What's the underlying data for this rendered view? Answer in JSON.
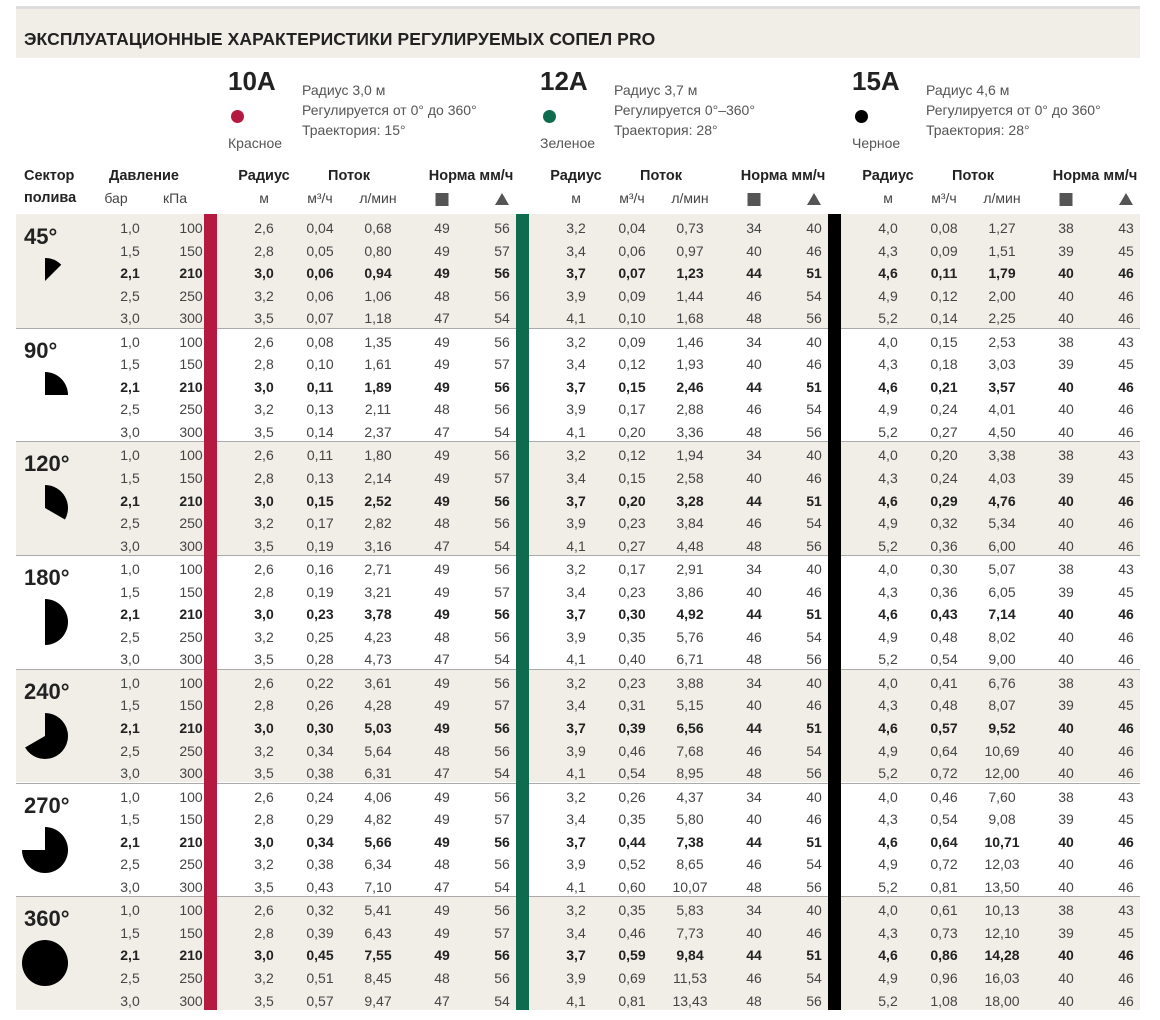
{
  "title": "ЭКСПЛУАТАЦИОННЫЕ ХАРАКТЕРИСТИКИ РЕГУЛИРУЕМЫХ СОПЕЛ PRO",
  "nozzles": [
    {
      "model": "10A",
      "color_name": "Красное",
      "color": "#b5193f",
      "specs": [
        "Радиус 3,0 м",
        "Регулируется от 0° до 360°",
        "Траектория: 15°"
      ]
    },
    {
      "model": "12A",
      "color_name": "Зеленое",
      "color": "#0f6b4e",
      "specs": [
        "Радиус 3,7 м",
        "Регулируется 0°–360°",
        "Траектория: 28°"
      ]
    },
    {
      "model": "15A",
      "color_name": "Черное",
      "color": "#000000",
      "specs": [
        "Радиус 4,6 м",
        "Регулируется от 0° до 360°",
        "Траектория: 28°"
      ]
    }
  ],
  "headers": {
    "sector": "Сектор",
    "sector2": "полива",
    "pressure": "Давление",
    "bar": "бар",
    "kpa": "кПа",
    "radius": "Радиус",
    "radius_unit": "м",
    "flow": "Поток",
    "flow_m3": "м³/ч",
    "flow_lmin": "л/мин",
    "rate": "Норма мм/ч"
  },
  "pressures": [
    [
      "1,0",
      "100"
    ],
    [
      "1,5",
      "150"
    ],
    [
      "2,1",
      "210"
    ],
    [
      "2,5",
      "250"
    ],
    [
      "3,0",
      "300"
    ]
  ],
  "rate_values": [
    [
      "49",
      "56"
    ],
    [
      "49",
      "57"
    ],
    [
      "49",
      "56"
    ],
    [
      "48",
      "56"
    ],
    [
      "47",
      "54"
    ]
  ],
  "rate_values_12": [
    [
      "34",
      "40"
    ],
    [
      "40",
      "46"
    ],
    [
      "44",
      "51"
    ],
    [
      "46",
      "54"
    ],
    [
      "48",
      "56"
    ]
  ],
  "rate_values_15": [
    [
      "38",
      "43"
    ],
    [
      "39",
      "45"
    ],
    [
      "40",
      "46"
    ],
    [
      "40",
      "46"
    ],
    [
      "40",
      "46"
    ]
  ],
  "radii": {
    "n10": [
      "2,6",
      "2,8",
      "3,0",
      "3,2",
      "3,5"
    ],
    "n12": [
      "3,2",
      "3,4",
      "3,7",
      "3,9",
      "4,1"
    ],
    "n15": [
      "4,0",
      "4,3",
      "4,6",
      "4,9",
      "5,2"
    ]
  },
  "sections": [
    {
      "label": "45°",
      "fraction": 0.125,
      "n10": [
        [
          "0,04",
          "0,68"
        ],
        [
          "0,05",
          "0,80"
        ],
        [
          "0,06",
          "0,94"
        ],
        [
          "0,06",
          "1,06"
        ],
        [
          "0,07",
          "1,18"
        ]
      ],
      "n12": [
        [
          "0,04",
          "0,73"
        ],
        [
          "0,06",
          "0,97"
        ],
        [
          "0,07",
          "1,23"
        ],
        [
          "0,09",
          "1,44"
        ],
        [
          "0,10",
          "1,68"
        ]
      ],
      "n15": [
        [
          "0,08",
          "1,27"
        ],
        [
          "0,09",
          "1,51"
        ],
        [
          "0,11",
          "1,79"
        ],
        [
          "0,12",
          "2,00"
        ],
        [
          "0,14",
          "2,25"
        ]
      ]
    },
    {
      "label": "90°",
      "fraction": 0.25,
      "n10": [
        [
          "0,08",
          "1,35"
        ],
        [
          "0,10",
          "1,61"
        ],
        [
          "0,11",
          "1,89"
        ],
        [
          "0,13",
          "2,11"
        ],
        [
          "0,14",
          "2,37"
        ]
      ],
      "n12": [
        [
          "0,09",
          "1,46"
        ],
        [
          "0,12",
          "1,93"
        ],
        [
          "0,15",
          "2,46"
        ],
        [
          "0,17",
          "2,88"
        ],
        [
          "0,20",
          "3,36"
        ]
      ],
      "n15": [
        [
          "0,15",
          "2,53"
        ],
        [
          "0,18",
          "3,03"
        ],
        [
          "0,21",
          "3,57"
        ],
        [
          "0,24",
          "4,01"
        ],
        [
          "0,27",
          "4,50"
        ]
      ]
    },
    {
      "label": "120°",
      "fraction": 0.3333,
      "n10": [
        [
          "0,11",
          "1,80"
        ],
        [
          "0,13",
          "2,14"
        ],
        [
          "0,15",
          "2,52"
        ],
        [
          "0,17",
          "2,82"
        ],
        [
          "0,19",
          "3,16"
        ]
      ],
      "n12": [
        [
          "0,12",
          "1,94"
        ],
        [
          "0,15",
          "2,58"
        ],
        [
          "0,20",
          "3,28"
        ],
        [
          "0,23",
          "3,84"
        ],
        [
          "0,27",
          "4,48"
        ]
      ],
      "n15": [
        [
          "0,20",
          "3,38"
        ],
        [
          "0,24",
          "4,03"
        ],
        [
          "0,29",
          "4,76"
        ],
        [
          "0,32",
          "5,34"
        ],
        [
          "0,36",
          "6,00"
        ]
      ]
    },
    {
      "label": "180°",
      "fraction": 0.5,
      "n10": [
        [
          "0,16",
          "2,71"
        ],
        [
          "0,19",
          "3,21"
        ],
        [
          "0,23",
          "3,78"
        ],
        [
          "0,25",
          "4,23"
        ],
        [
          "0,28",
          "4,73"
        ]
      ],
      "n12": [
        [
          "0,17",
          "2,91"
        ],
        [
          "0,23",
          "3,86"
        ],
        [
          "0,30",
          "4,92"
        ],
        [
          "0,35",
          "5,76"
        ],
        [
          "0,40",
          "6,71"
        ]
      ],
      "n15": [
        [
          "0,30",
          "5,07"
        ],
        [
          "0,36",
          "6,05"
        ],
        [
          "0,43",
          "7,14"
        ],
        [
          "0,48",
          "8,02"
        ],
        [
          "0,54",
          "9,00"
        ]
      ]
    },
    {
      "label": "240°",
      "fraction": 0.6667,
      "n10": [
        [
          "0,22",
          "3,61"
        ],
        [
          "0,26",
          "4,28"
        ],
        [
          "0,30",
          "5,03"
        ],
        [
          "0,34",
          "5,64"
        ],
        [
          "0,38",
          "6,31"
        ]
      ],
      "n12": [
        [
          "0,23",
          "3,88"
        ],
        [
          "0,31",
          "5,15"
        ],
        [
          "0,39",
          "6,56"
        ],
        [
          "0,46",
          "7,68"
        ],
        [
          "0,54",
          "8,95"
        ]
      ],
      "n15": [
        [
          "0,41",
          "6,76"
        ],
        [
          "0,48",
          "8,07"
        ],
        [
          "0,57",
          "9,52"
        ],
        [
          "0,64",
          "10,69"
        ],
        [
          "0,72",
          "12,00"
        ]
      ]
    },
    {
      "label": "270°",
      "fraction": 0.75,
      "n10": [
        [
          "0,24",
          "4,06"
        ],
        [
          "0,29",
          "4,82"
        ],
        [
          "0,34",
          "5,66"
        ],
        [
          "0,38",
          "6,34"
        ],
        [
          "0,43",
          "7,10"
        ]
      ],
      "n12": [
        [
          "0,26",
          "4,37"
        ],
        [
          "0,35",
          "5,80"
        ],
        [
          "0,44",
          "7,38"
        ],
        [
          "0,52",
          "8,65"
        ],
        [
          "0,60",
          "10,07"
        ]
      ],
      "n15": [
        [
          "0,46",
          "7,60"
        ],
        [
          "0,54",
          "9,08"
        ],
        [
          "0,64",
          "10,71"
        ],
        [
          "0,72",
          "12,03"
        ],
        [
          "0,81",
          "13,50"
        ]
      ]
    },
    {
      "label": "360°",
      "fraction": 1.0,
      "n10": [
        [
          "0,32",
          "5,41"
        ],
        [
          "0,39",
          "6,43"
        ],
        [
          "0,45",
          "7,55"
        ],
        [
          "0,51",
          "8,45"
        ],
        [
          "0,57",
          "9,47"
        ]
      ],
      "n12": [
        [
          "0,35",
          "5,83"
        ],
        [
          "0,46",
          "7,73"
        ],
        [
          "0,59",
          "9,84"
        ],
        [
          "0,69",
          "11,53"
        ],
        [
          "0,81",
          "13,43"
        ]
      ],
      "n15": [
        [
          "0,61",
          "10,13"
        ],
        [
          "0,73",
          "12,10"
        ],
        [
          "0,86",
          "14,28"
        ],
        [
          "0,96",
          "16,03"
        ],
        [
          "1,08",
          "18,00"
        ]
      ]
    }
  ]
}
